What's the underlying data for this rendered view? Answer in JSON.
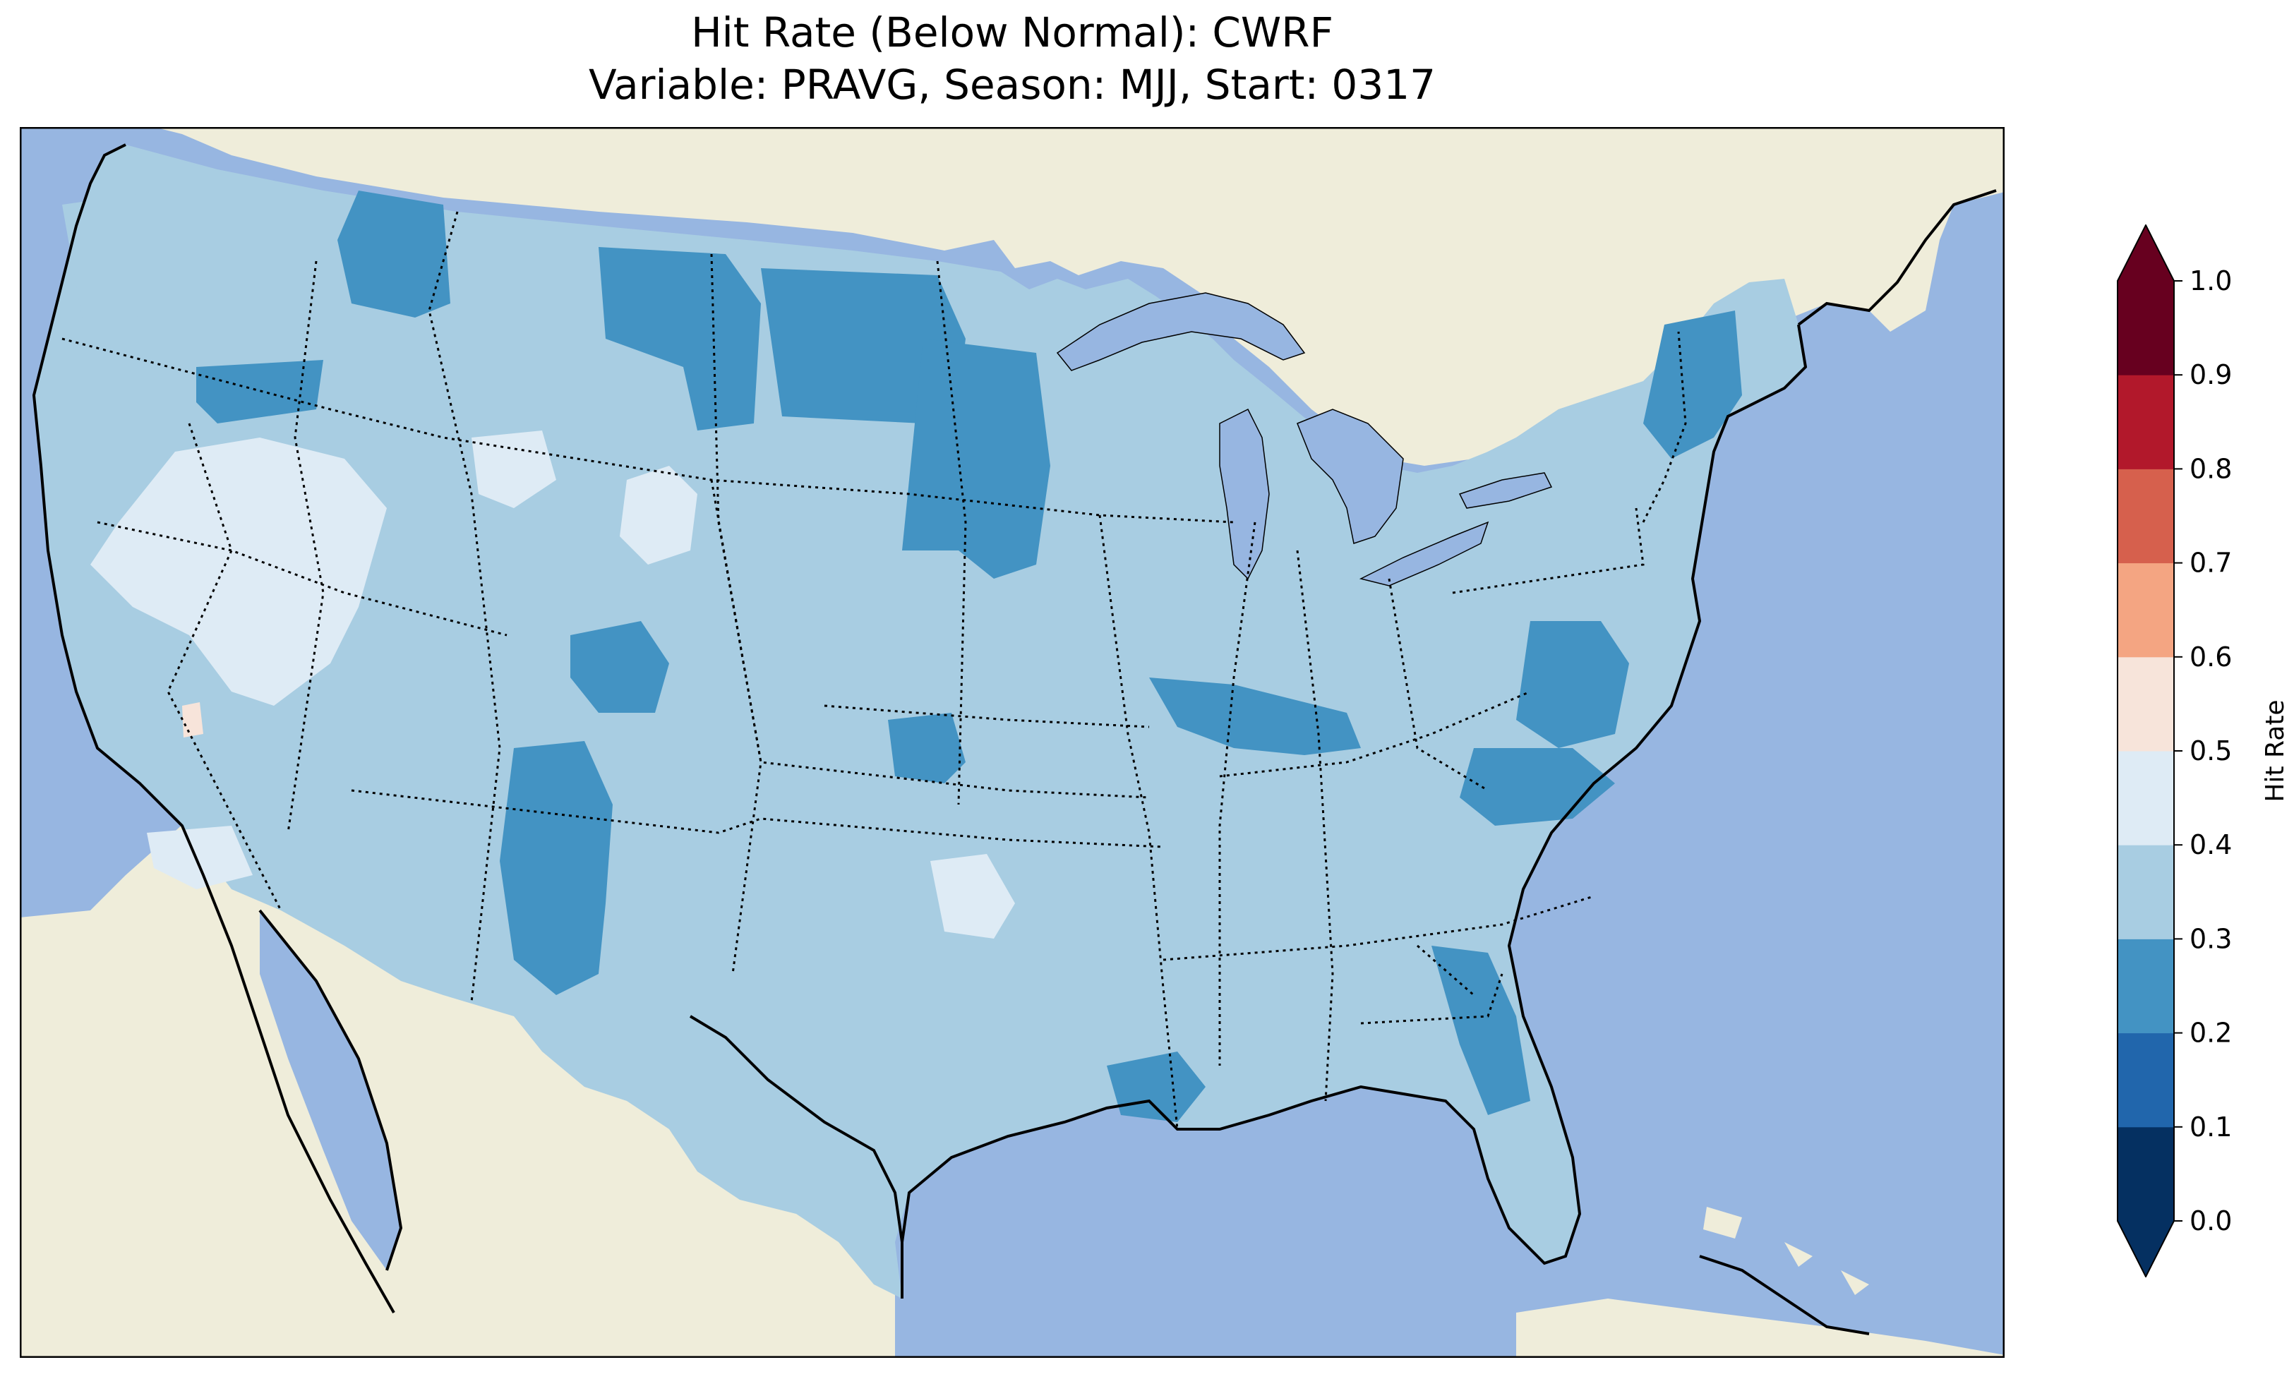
{
  "title_line_1": "Hit Rate (Below Normal): CWRF",
  "title_line_2": "Variable: PRAVG, Season: MJJ, Start: 0317",
  "colorbar": {
    "label": "Hit Rate",
    "ticks": [
      "0.0",
      "0.1",
      "0.2",
      "0.3",
      "0.4",
      "0.5",
      "0.6",
      "0.7",
      "0.8",
      "0.9",
      "1.0"
    ],
    "bins": [
      {
        "from": 0.0,
        "to": 0.1,
        "color": "#053061"
      },
      {
        "from": 0.1,
        "to": 0.2,
        "color": "#2166ac"
      },
      {
        "from": 0.2,
        "to": 0.3,
        "color": "#4393c3"
      },
      {
        "from": 0.3,
        "to": 0.4,
        "color": "#a8cde2"
      },
      {
        "from": 0.4,
        "to": 0.5,
        "color": "#deebf5"
      },
      {
        "from": 0.5,
        "to": 0.6,
        "color": "#f7e4da"
      },
      {
        "from": 0.6,
        "to": 0.7,
        "color": "#f4a582"
      },
      {
        "from": 0.7,
        "to": 0.8,
        "color": "#d6604d"
      },
      {
        "from": 0.8,
        "to": 0.9,
        "color": "#b2182b"
      },
      {
        "from": 0.9,
        "to": 1.0,
        "color": "#67001f"
      }
    ],
    "extend": "both"
  },
  "map": {
    "ocean_color": "#97b6e1",
    "land_color": "#efedda",
    "lake_color": "#97b6e1",
    "border_color": "#000000",
    "base_fill_value": 0.35,
    "regions": [
      {
        "name": "Washington coast / Cascades",
        "value": 0.35
      },
      {
        "name": "Northern Idaho panhandle",
        "value": 0.25
      },
      {
        "name": "Northeast Oregon",
        "value": 0.25
      },
      {
        "name": "Montana / North Dakota border belt",
        "value": 0.25
      },
      {
        "name": "Eastern North Dakota",
        "value": 0.25
      },
      {
        "name": "Eastern South Dakota / Nebraska",
        "value": 0.25
      },
      {
        "name": "Nevada / eastern California",
        "value": 0.45
      },
      {
        "name": "Southeast Wyoming",
        "value": 0.45
      },
      {
        "name": "Northern Utah",
        "value": 0.45
      },
      {
        "name": "Central Colorado",
        "value": 0.25
      },
      {
        "name": "New Mexico",
        "value": 0.25
      },
      {
        "name": "Southwest Kansas / Oklahoma",
        "value": 0.25
      },
      {
        "name": "North Texas",
        "value": 0.45
      },
      {
        "name": "Southern Illinois / Kentucky",
        "value": 0.25
      },
      {
        "name": "Virginia",
        "value": 0.25
      },
      {
        "name": "North Carolina",
        "value": 0.25
      },
      {
        "name": "New England / Maine",
        "value": 0.25
      },
      {
        "name": "Louisiana coast",
        "value": 0.25
      },
      {
        "name": "Florida",
        "value": 0.25
      },
      {
        "name": "Southern California",
        "value": 0.45
      },
      {
        "name": "Northern California",
        "value": 0.55
      }
    ]
  }
}
